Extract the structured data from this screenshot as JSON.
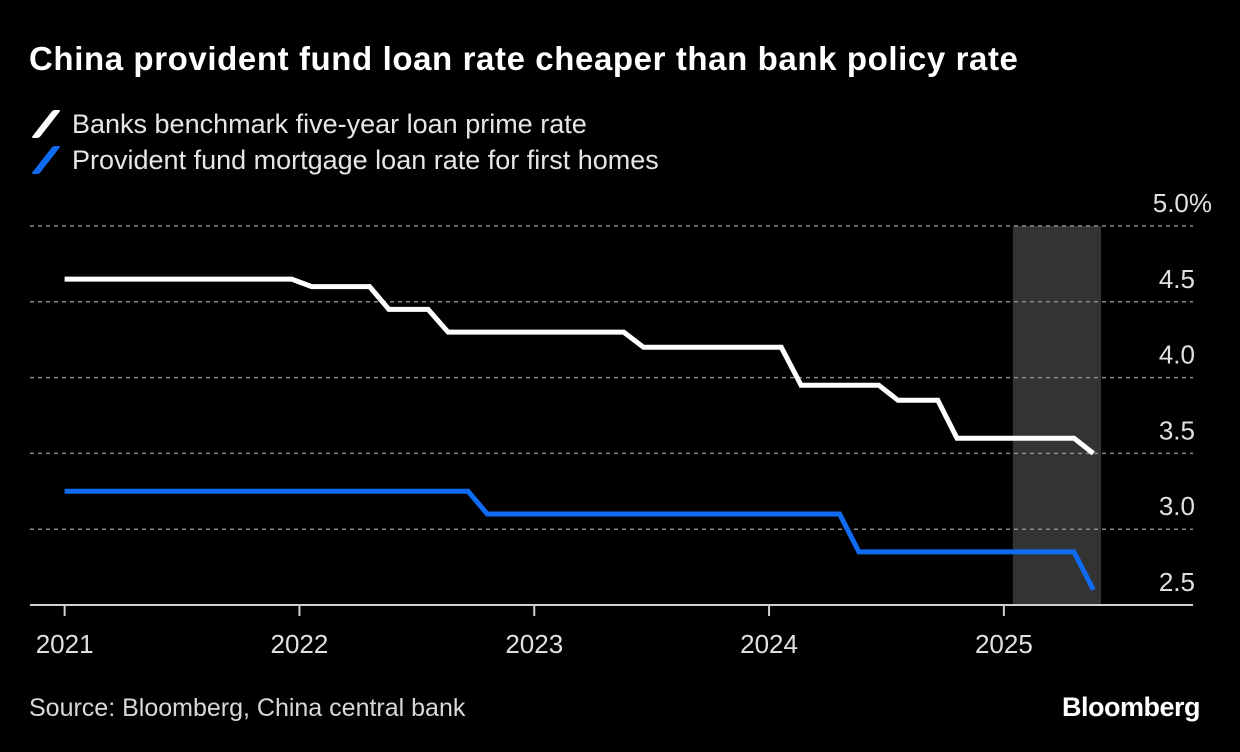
{
  "chart_data": {
    "type": "line",
    "title": "China provident fund loan rate cheaper than bank policy rate",
    "xlabel": "",
    "ylabel": "",
    "ylim": [
      2.5,
      5.0
    ],
    "y_ticks": [
      {
        "value": 5.0,
        "label": "5.0%"
      },
      {
        "value": 4.5,
        "label": "4.5"
      },
      {
        "value": 4.0,
        "label": "4.0"
      },
      {
        "value": 3.5,
        "label": "3.5"
      },
      {
        "value": 3.0,
        "label": "3.0"
      },
      {
        "value": 2.5,
        "label": "2.5"
      }
    ],
    "xlim": [
      "2020-11-08",
      "2025-10-22"
    ],
    "x_ticks": [
      {
        "value": "2021-01-01",
        "label": "2021"
      },
      {
        "value": "2022-01-01",
        "label": "2022"
      },
      {
        "value": "2023-01-01",
        "label": "2023"
      },
      {
        "value": "2024-01-01",
        "label": "2024"
      },
      {
        "value": "2025-01-01",
        "label": "2025"
      }
    ],
    "grid": "horizontal dotted",
    "legend_placement": "top-left",
    "shaded_range": {
      "from": "2025-01-15",
      "to": "2025-06-01",
      "color": "#333333"
    },
    "series": [
      {
        "name": "Banks benchmark five-year loan prime rate",
        "color": "#ffffff",
        "points": [
          [
            "2021-01-01",
            4.65
          ],
          [
            "2021-12-20",
            4.65
          ],
          [
            "2022-01-20",
            4.6
          ],
          [
            "2022-04-20",
            4.6
          ],
          [
            "2022-05-20",
            4.45
          ],
          [
            "2022-07-20",
            4.45
          ],
          [
            "2022-08-20",
            4.3
          ],
          [
            "2023-05-20",
            4.3
          ],
          [
            "2023-06-20",
            4.2
          ],
          [
            "2024-01-20",
            4.2
          ],
          [
            "2024-02-20",
            3.95
          ],
          [
            "2024-06-20",
            3.95
          ],
          [
            "2024-07-20",
            3.85
          ],
          [
            "2024-09-20",
            3.85
          ],
          [
            "2024-10-20",
            3.6
          ],
          [
            "2025-04-20",
            3.6
          ],
          [
            "2025-05-20",
            3.5
          ]
        ]
      },
      {
        "name": "Provident fund mortgage loan rate for first homes",
        "color": "#0f6cf2",
        "points": [
          [
            "2021-01-01",
            3.25
          ],
          [
            "2022-09-20",
            3.25
          ],
          [
            "2022-10-20",
            3.1
          ],
          [
            "2024-04-20",
            3.1
          ],
          [
            "2024-05-20",
            2.85
          ],
          [
            "2025-04-20",
            2.85
          ],
          [
            "2025-05-20",
            2.6
          ]
        ]
      }
    ]
  },
  "footer": {
    "source": "Source: Bloomberg, China central bank",
    "logo": "Bloomberg"
  }
}
